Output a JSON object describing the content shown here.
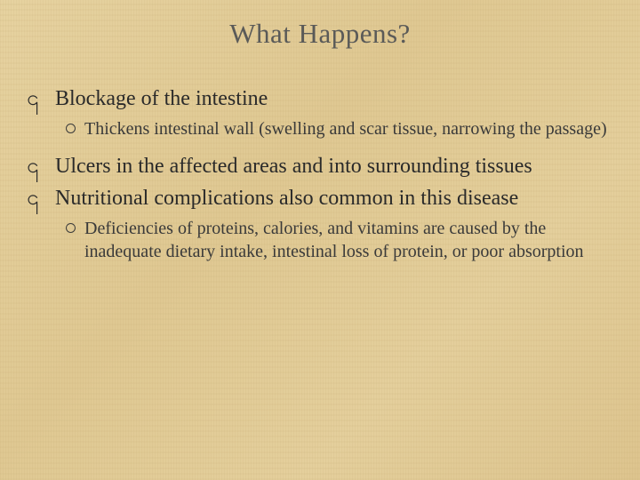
{
  "slide": {
    "title": "What Happens?",
    "title_color": "#5a5a58",
    "title_fontsize": 31,
    "background_color": "#e3ce9a",
    "body_color": "#2a2a2a",
    "sub_color": "#3a3a3a",
    "l1_fontsize": 24,
    "l2_fontsize": 20,
    "l1_bullet_glyph": "་",
    "items": [
      {
        "text": "Blockage of the intestine",
        "subitems": [
          {
            "text": "Thickens intestinal wall  (swelling and scar tissue, narrowing the passage)"
          }
        ]
      },
      {
        "text": "Ulcers in the affected areas and into surrounding tissues",
        "subitems": []
      },
      {
        "text": "Nutritional complications also common in this disease",
        "subitems": [
          {
            "text": "Deficiencies of proteins, calories, and vitamins are caused by the inadequate dietary intake, intestinal loss of protein, or poor absorption"
          }
        ]
      }
    ]
  }
}
